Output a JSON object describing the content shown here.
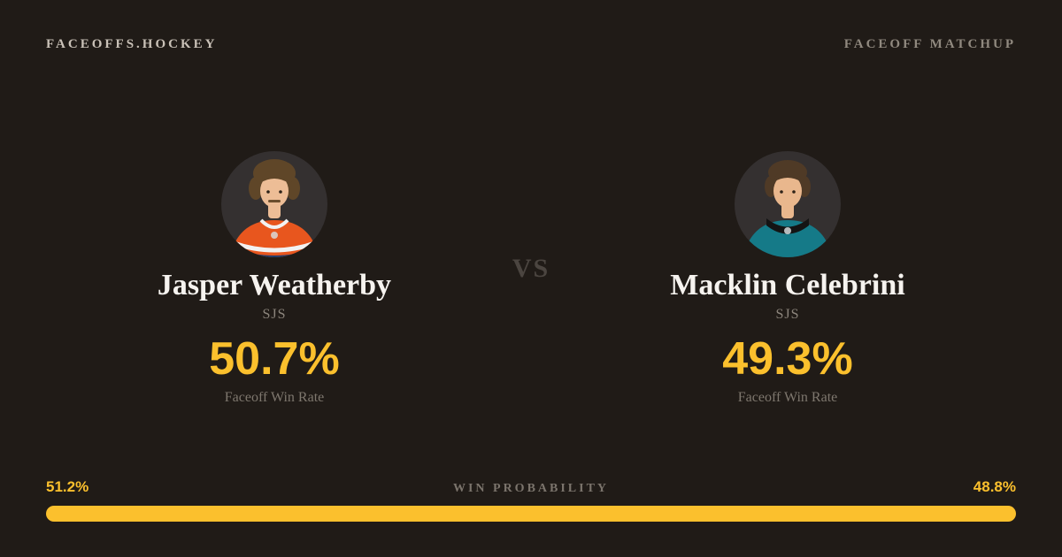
{
  "theme": {
    "bg": "#201b17",
    "accent": "#fbc02d",
    "brand": "#c9c1b7",
    "label_muted": "#90897f",
    "label_muted2": "#7b746c",
    "text_primary": "#f6f3ef",
    "team_muted": "#8b847b",
    "stat_muted": "#7e776e",
    "vs": "#4b4540",
    "avatar_bg": "#343030",
    "p1_jersey": "#e8561e",
    "p1_jersey_accent": "#1d3c6e",
    "p1_collar": "#f2f2f2",
    "p1_hair": "#5f4628",
    "p1_skin": "#edbd96",
    "p2_jersey": "#157a88",
    "p2_collar": "#141414",
    "p2_hair": "#4f3a26",
    "p2_skin": "#e9b78d"
  },
  "header": {
    "brand": "FACEOFFS.HOCKEY",
    "page_label": "FACEOFF MATCHUP"
  },
  "matchup": {
    "vs_label": "VS",
    "players": [
      {
        "name": "Jasper Weatherby",
        "team": "SJS",
        "win_rate": "50.7%",
        "stat_label": "Faceoff Win Rate"
      },
      {
        "name": "Macklin Celebrini",
        "team": "SJS",
        "win_rate": "49.3%",
        "stat_label": "Faceoff Win Rate"
      }
    ]
  },
  "win_probability": {
    "label": "WIN PROBABILITY",
    "left_pct": "51.2%",
    "right_pct": "48.8%",
    "left_value": 51.2,
    "right_value": 48.8
  }
}
